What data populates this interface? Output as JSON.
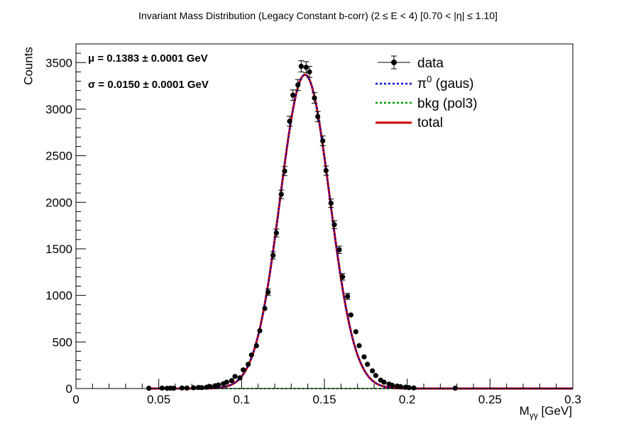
{
  "chart_data": {
    "type": "scatter",
    "title": "Invariant Mass Distribution (Legacy Constant b-corr)   (2 ≤ E < 4)   [0.70 < |η| ≤ 1.10]",
    "xlabel_main": "M",
    "xlabel_sub": "γγ",
    "xlabel_unit": "  [GeV]",
    "ylabel": "Counts",
    "xlim": [
      0,
      0.3
    ],
    "ylim": [
      0,
      3700
    ],
    "x_ticks": [
      0,
      0.05,
      0.1,
      0.15,
      0.2,
      0.25,
      0.3
    ],
    "x_tick_labels": [
      "0",
      "0.05",
      "0.1",
      "0.15",
      "0.2",
      "0.25",
      "0.3"
    ],
    "y_ticks": [
      0,
      500,
      1000,
      1500,
      2000,
      2500,
      3000,
      3500
    ],
    "y_tick_labels": [
      "0",
      "500",
      "1000",
      "1500",
      "2000",
      "2500",
      "3000",
      "3500"
    ],
    "stats": {
      "mu": "μ = 0.1383  ± 0.0001 GeV",
      "sigma": "σ = 0.0150  ± 0.0001 GeV"
    },
    "legend_position": "top-right",
    "legend": [
      {
        "label": "data",
        "style": "marker",
        "color": "#000000"
      },
      {
        "label_main": "π",
        "label_sup": "0",
        "label_rest": " (gaus)",
        "style": "dashed",
        "color": "#0000cc"
      },
      {
        "label": "bkg (pol3)",
        "style": "dashed",
        "color": "#009900"
      },
      {
        "label": "total",
        "style": "solid",
        "color": "#cc0000"
      }
    ],
    "fit": {
      "amplitude": 3370,
      "mean": 0.1383,
      "sigma": 0.015,
      "x_range": [
        0.044,
        0.3
      ]
    },
    "series": [
      {
        "name": "data",
        "x": [
          0.044,
          0.052,
          0.055,
          0.057,
          0.059,
          0.064,
          0.067,
          0.071,
          0.074,
          0.076,
          0.079,
          0.081,
          0.084,
          0.086,
          0.089,
          0.091,
          0.094,
          0.096,
          0.099,
          0.101,
          0.104,
          0.106,
          0.109,
          0.111,
          0.114,
          0.116,
          0.119,
          0.121,
          0.124,
          0.126,
          0.129,
          0.131,
          0.134,
          0.136,
          0.139,
          0.141,
          0.144,
          0.146,
          0.149,
          0.151,
          0.154,
          0.156,
          0.159,
          0.161,
          0.164,
          0.166,
          0.169,
          0.171,
          0.174,
          0.176,
          0.179,
          0.181,
          0.184,
          0.186,
          0.189,
          0.191,
          0.194,
          0.196,
          0.199,
          0.201,
          0.204,
          0.229
        ],
        "y": [
          3,
          5,
          2,
          4,
          3,
          6,
          5,
          8,
          12,
          10,
          15,
          22,
          30,
          38,
          52,
          68,
          85,
          130,
          115,
          200,
          260,
          360,
          460,
          620,
          860,
          1035,
          1430,
          1670,
          2085,
          2335,
          2870,
          3150,
          3260,
          3460,
          3450,
          3400,
          3120,
          2920,
          2660,
          2340,
          1990,
          1760,
          1490,
          1200,
          990,
          790,
          610,
          460,
          340,
          260,
          190,
          140,
          90,
          68,
          48,
          35,
          26,
          20,
          14,
          10,
          7,
          4
        ],
        "err": [
          2,
          2,
          1,
          2,
          2,
          3,
          2,
          3,
          4,
          3,
          4,
          5,
          6,
          7,
          8,
          9,
          10,
          12,
          11,
          15,
          17,
          20,
          22,
          25,
          30,
          33,
          38,
          42,
          46,
          49,
          54,
          57,
          58,
          60,
          60,
          59,
          57,
          55,
          52,
          49,
          45,
          42,
          39,
          35,
          32,
          29,
          25,
          22,
          19,
          17,
          14,
          12,
          10,
          8,
          7,
          6,
          5,
          5,
          4,
          3,
          3,
          2
        ]
      }
    ]
  },
  "colors": {
    "signal": "#0000cc",
    "background": "#009900",
    "total": "#cc0000",
    "data": "#000000"
  }
}
